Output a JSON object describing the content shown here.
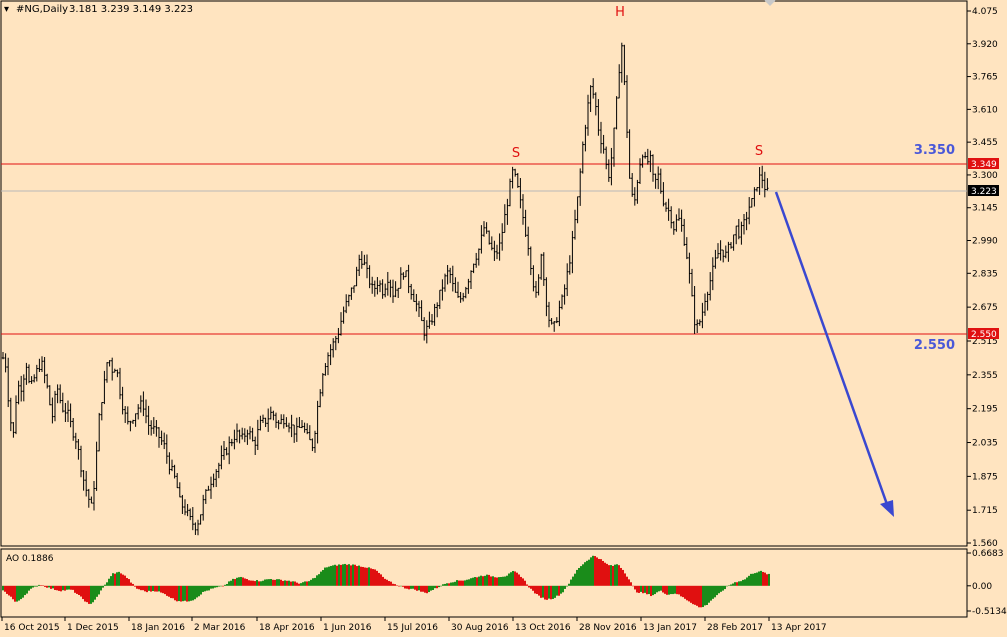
{
  "header": {
    "symbol": "#NG,Daily",
    "ohlc": "3.181 3.239 3.149 3.223"
  },
  "chart_data": [
    {
      "type": "candlestick",
      "title": "#NG,Daily",
      "ohlc_last": {
        "open": 3.181,
        "high": 3.239,
        "low": 3.149,
        "close": 3.223
      },
      "ylim": [
        1.56,
        4.075
      ],
      "y_ticks": [
        "4.075",
        "3.920",
        "3.765",
        "3.610",
        "3.455",
        "3.300",
        "3.145",
        "2.990",
        "2.835",
        "2.675",
        "2.515",
        "2.355",
        "2.195",
        "2.035",
        "1.875",
        "1.715",
        "1.560"
      ],
      "x_ticks": [
        "16 Oct 2015",
        "1 Dec 2015",
        "18 Jan 2016",
        "2 Mar 2016",
        "18 Apr 2016",
        "1 Jun 2016",
        "15 Jul 2016",
        "30 Aug 2016",
        "13 Oct 2016",
        "28 Nov 2016",
        "13 Jan 2017",
        "28 Feb 2017",
        "13 Apr 2017"
      ],
      "price_path": [
        [
          0,
          2.47
        ],
        [
          6,
          2.4
        ],
        [
          9,
          2.2
        ],
        [
          13,
          2.05
        ],
        [
          17,
          2.3
        ],
        [
          22,
          2.3
        ],
        [
          26,
          2.42
        ],
        [
          30,
          2.28
        ],
        [
          35,
          2.35
        ],
        [
          41,
          2.42
        ],
        [
          47,
          2.3
        ],
        [
          52,
          2.15
        ],
        [
          57,
          2.3
        ],
        [
          62,
          2.2
        ],
        [
          67,
          2.18
        ],
        [
          72,
          2.1
        ],
        [
          76,
          2.05
        ],
        [
          80,
          1.95
        ],
        [
          84,
          1.85
        ],
        [
          88,
          1.78
        ],
        [
          92,
          1.72
        ],
        [
          96,
          1.95
        ],
        [
          100,
          2.2
        ],
        [
          104,
          2.3
        ],
        [
          108,
          2.45
        ],
        [
          112,
          2.38
        ],
        [
          116,
          2.4
        ],
        [
          120,
          2.28
        ],
        [
          124,
          2.18
        ],
        [
          128,
          2.12
        ],
        [
          133,
          2.16
        ],
        [
          138,
          2.2
        ],
        [
          143,
          2.22
        ],
        [
          148,
          2.12
        ],
        [
          153,
          2.1
        ],
        [
          158,
          2.07
        ],
        [
          164,
          2.02
        ],
        [
          170,
          1.92
        ],
        [
          176,
          1.85
        ],
        [
          180,
          1.75
        ],
        [
          185,
          1.72
        ],
        [
          190,
          1.67
        ],
        [
          195,
          1.64
        ],
        [
          199,
          1.67
        ],
        [
          203,
          1.75
        ],
        [
          208,
          1.82
        ],
        [
          213,
          1.88
        ],
        [
          218,
          1.92
        ],
        [
          224,
          1.98
        ],
        [
          230,
          2.03
        ],
        [
          236,
          2.08
        ],
        [
          242,
          2.05
        ],
        [
          248,
          2.1
        ],
        [
          254,
          2.02
        ],
        [
          260,
          2.12
        ],
        [
          266,
          2.14
        ],
        [
          272,
          2.18
        ],
        [
          278,
          2.12
        ],
        [
          284,
          2.15
        ],
        [
          290,
          2.12
        ],
        [
          296,
          2.08
        ],
        [
          302,
          2.12
        ],
        [
          308,
          2.05
        ],
        [
          313,
          2.02
        ],
        [
          318,
          2.22
        ],
        [
          323,
          2.38
        ],
        [
          328,
          2.45
        ],
        [
          333,
          2.5
        ],
        [
          338,
          2.55
        ],
        [
          343,
          2.65
        ],
        [
          349,
          2.72
        ],
        [
          355,
          2.8
        ],
        [
          360,
          2.92
        ],
        [
          364,
          2.88
        ],
        [
          368,
          2.82
        ],
        [
          373,
          2.75
        ],
        [
          378,
          2.8
        ],
        [
          383,
          2.75
        ],
        [
          388,
          2.82
        ],
        [
          393,
          2.74
        ],
        [
          398,
          2.78
        ],
        [
          404,
          2.85
        ],
        [
          409,
          2.78
        ],
        [
          414,
          2.72
        ],
        [
          419,
          2.65
        ],
        [
          424,
          2.56
        ],
        [
          429,
          2.58
        ],
        [
          434,
          2.65
        ],
        [
          439,
          2.72
        ],
        [
          444,
          2.8
        ],
        [
          449,
          2.85
        ],
        [
          454,
          2.75
        ],
        [
          459,
          2.7
        ],
        [
          464,
          2.75
        ],
        [
          469,
          2.82
        ],
        [
          474,
          2.9
        ],
        [
          479,
          2.95
        ],
        [
          484,
          3.05
        ],
        [
          489,
          2.98
        ],
        [
          494,
          2.92
        ],
        [
          499,
          2.95
        ],
        [
          504,
          3.08
        ],
        [
          509,
          3.22
        ],
        [
          513,
          3.32
        ],
        [
          517,
          3.25
        ],
        [
          521,
          3.15
        ],
        [
          525,
          3.05
        ],
        [
          529,
          2.95
        ],
        [
          533,
          2.8
        ],
        [
          537,
          2.7
        ],
        [
          541,
          2.95
        ],
        [
          545,
          2.75
        ],
        [
          549,
          2.62
        ],
        [
          553,
          2.56
        ],
        [
          558,
          2.65
        ],
        [
          563,
          2.72
        ],
        [
          568,
          2.85
        ],
        [
          573,
          3.0
        ],
        [
          578,
          3.2
        ],
        [
          583,
          3.45
        ],
        [
          587,
          3.6
        ],
        [
          591,
          3.72
        ],
        [
          595,
          3.65
        ],
        [
          599,
          3.5
        ],
        [
          604,
          3.42
        ],
        [
          608,
          3.28
        ],
        [
          612,
          3.4
        ],
        [
          616,
          3.6
        ],
        [
          619,
          3.8
        ],
        [
          622,
          3.92
        ],
        [
          626,
          3.6
        ],
        [
          630,
          3.25
        ],
        [
          634,
          3.15
        ],
        [
          638,
          3.3
        ],
        [
          642,
          3.42
        ],
        [
          646,
          3.35
        ],
        [
          650,
          3.38
        ],
        [
          654,
          3.25
        ],
        [
          658,
          3.3
        ],
        [
          662,
          3.2
        ],
        [
          666,
          3.15
        ],
        [
          670,
          3.12
        ],
        [
          674,
          3.05
        ],
        [
          678,
          3.1
        ],
        [
          682,
          3.05
        ],
        [
          686,
          2.95
        ],
        [
          690,
          2.8
        ],
        [
          694,
          2.62
        ],
        [
          697,
          2.58
        ],
        [
          701,
          2.62
        ],
        [
          705,
          2.72
        ],
        [
          709,
          2.78
        ],
        [
          713,
          2.85
        ],
        [
          717,
          2.92
        ],
        [
          721,
          2.95
        ],
        [
          726,
          2.92
        ],
        [
          731,
          2.98
        ],
        [
          736,
          3.05
        ],
        [
          740,
          3.02
        ],
        [
          745,
          3.08
        ],
        [
          749,
          3.15
        ],
        [
          753,
          3.18
        ],
        [
          757,
          3.26
        ],
        [
          761,
          3.3
        ],
        [
          765,
          3.24
        ],
        [
          769,
          3.2
        ]
      ]
    },
    {
      "type": "bar",
      "title": "AO 0.1886",
      "ylim": [
        -0.5134,
        0.6683
      ],
      "y_ticks": [
        "0.6683",
        "0.00",
        "-0.5134"
      ],
      "ao_path": [
        [
          3,
          -0.1
        ],
        [
          10,
          -0.2
        ],
        [
          16,
          -0.35
        ],
        [
          22,
          -0.25
        ],
        [
          30,
          -0.08
        ],
        [
          40,
          0.03
        ],
        [
          50,
          -0.05
        ],
        [
          60,
          -0.1
        ],
        [
          72,
          -0.08
        ],
        [
          82,
          -0.25
        ],
        [
          90,
          -0.4
        ],
        [
          98,
          -0.2
        ],
        [
          106,
          0.05
        ],
        [
          113,
          0.25
        ],
        [
          120,
          0.28
        ],
        [
          128,
          0.15
        ],
        [
          136,
          -0.05
        ],
        [
          146,
          -0.12
        ],
        [
          156,
          -0.1
        ],
        [
          166,
          -0.18
        ],
        [
          176,
          -0.3
        ],
        [
          186,
          -0.32
        ],
        [
          194,
          -0.28
        ],
        [
          204,
          -0.12
        ],
        [
          214,
          -0.05
        ],
        [
          224,
          0.0
        ],
        [
          232,
          0.12
        ],
        [
          240,
          0.18
        ],
        [
          250,
          0.12
        ],
        [
          260,
          0.1
        ],
        [
          270,
          0.14
        ],
        [
          280,
          0.12
        ],
        [
          290,
          0.1
        ],
        [
          300,
          0.05
        ],
        [
          310,
          0.1
        ],
        [
          318,
          0.22
        ],
        [
          326,
          0.38
        ],
        [
          336,
          0.42
        ],
        [
          346,
          0.44
        ],
        [
          356,
          0.42
        ],
        [
          366,
          0.38
        ],
        [
          376,
          0.32
        ],
        [
          386,
          0.12
        ],
        [
          396,
          0.02
        ],
        [
          406,
          -0.05
        ],
        [
          416,
          -0.08
        ],
        [
          426,
          -0.15
        ],
        [
          436,
          -0.05
        ],
        [
          446,
          0.05
        ],
        [
          456,
          0.1
        ],
        [
          466,
          0.12
        ],
        [
          476,
          0.18
        ],
        [
          486,
          0.22
        ],
        [
          496,
          0.18
        ],
        [
          506,
          0.2
        ],
        [
          514,
          0.3
        ],
        [
          522,
          0.18
        ],
        [
          530,
          -0.05
        ],
        [
          538,
          -0.2
        ],
        [
          546,
          -0.28
        ],
        [
          554,
          -0.25
        ],
        [
          562,
          -0.15
        ],
        [
          570,
          0.08
        ],
        [
          578,
          0.35
        ],
        [
          586,
          0.5
        ],
        [
          594,
          0.62
        ],
        [
          600,
          0.55
        ],
        [
          606,
          0.45
        ],
        [
          612,
          0.4
        ],
        [
          618,
          0.45
        ],
        [
          624,
          0.3
        ],
        [
          630,
          0.1
        ],
        [
          636,
          -0.12
        ],
        [
          644,
          -0.15
        ],
        [
          652,
          -0.2
        ],
        [
          660,
          -0.1
        ],
        [
          668,
          -0.18
        ],
        [
          676,
          -0.15
        ],
        [
          684,
          -0.25
        ],
        [
          692,
          -0.35
        ],
        [
          700,
          -0.45
        ],
        [
          706,
          -0.4
        ],
        [
          712,
          -0.28
        ],
        [
          720,
          -0.15
        ],
        [
          728,
          0.0
        ],
        [
          736,
          0.08
        ],
        [
          744,
          0.12
        ],
        [
          752,
          0.25
        ],
        [
          760,
          0.3
        ],
        [
          770,
          0.22
        ]
      ]
    }
  ],
  "levels": {
    "resistance": {
      "price": "3.349",
      "label": "3.350",
      "color": "#e01010"
    },
    "support": {
      "price": "2.550",
      "label": "2.550",
      "color": "#e01010"
    },
    "current": {
      "price": "3.223"
    }
  },
  "pattern_labels": {
    "left_shoulder": "S",
    "head": "H",
    "right_shoulder": "S"
  },
  "indicator": {
    "name": "AO 0.1886"
  },
  "colors": {
    "background": "#ffe4c0",
    "candles": "#000000",
    "level_line": "#e01010",
    "arrow": "#3a48d0",
    "ao_up": "#1a8c1a",
    "ao_down": "#e01010"
  }
}
